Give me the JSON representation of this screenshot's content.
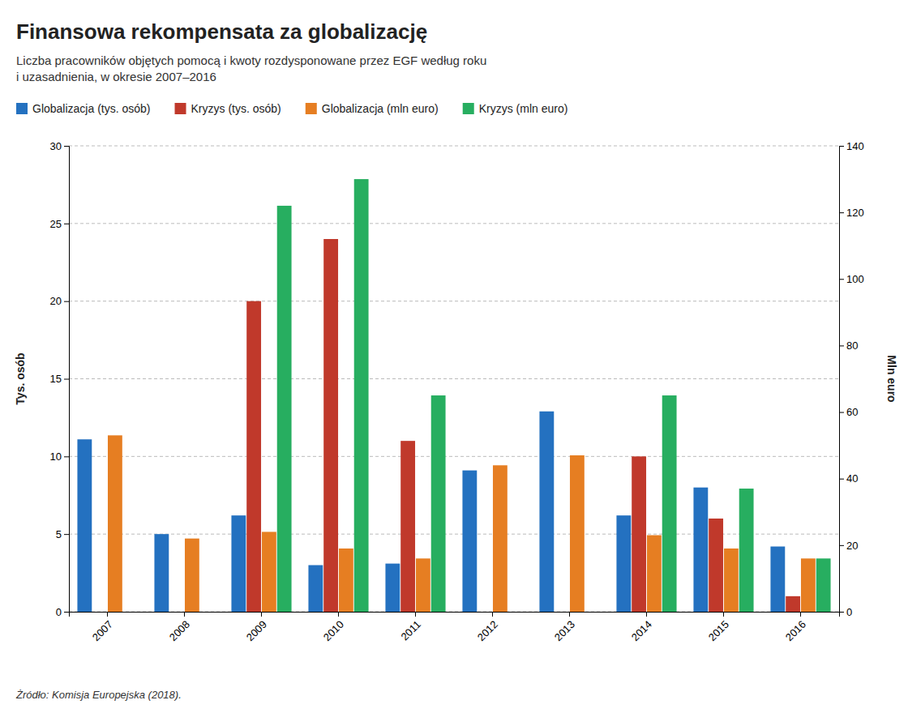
{
  "chart_data": {
    "type": "bar",
    "title": "Finansowa rekompensata za globalizację",
    "subtitle": [
      "Liczba pracowników objętych pomocą i kwoty rozdysponowane przez EGF według roku",
      "i uzasadnienia, w okresie 2007–2016"
    ],
    "source": "Żródło: Komisja Europejska (2018).",
    "categories": [
      "2007",
      "2008",
      "2009",
      "2010",
      "2011",
      "2012",
      "2013",
      "2014",
      "2015",
      "2016"
    ],
    "series": [
      {
        "name": "Globalizacja (tys. osób)",
        "color": "#2471C0",
        "values": [
          11.1,
          5.0,
          6.2,
          3.0,
          3.1,
          9.1,
          12.9,
          6.2,
          8.0,
          4.2
        ]
      },
      {
        "name": "Kryzys (tys. osób)",
        "color": "#C0392B",
        "values": [
          0,
          0,
          20.0,
          24.0,
          11.0,
          0,
          0,
          10.0,
          6.0,
          1.0
        ]
      },
      {
        "name": "Globalizacja (mln euro)",
        "color": "#E67E22",
        "axis": "y2",
        "values": [
          53.0,
          22.0,
          24.0,
          19.0,
          16.0,
          44.0,
          47.0,
          23.0,
          19.0,
          16.0
        ]
      },
      {
        "name": "Kryzys (mln euro)",
        "color": "#27AE60",
        "axis": "y2",
        "values": [
          0,
          0,
          122.0,
          130.0,
          65.0,
          0,
          0,
          65.0,
          37.0,
          16.0
        ]
      }
    ],
    "y_label": "Tys. osób",
    "y2_label": "Mln euro",
    "ylim": [
      0,
      30
    ],
    "yticks": [
      0,
      5,
      10,
      15,
      20,
      25,
      30
    ],
    "y2lim": [
      0,
      140
    ],
    "y2ticks": [
      0,
      20,
      40,
      60,
      80,
      100,
      120,
      140
    ],
    "grid": true,
    "legend": "top"
  }
}
